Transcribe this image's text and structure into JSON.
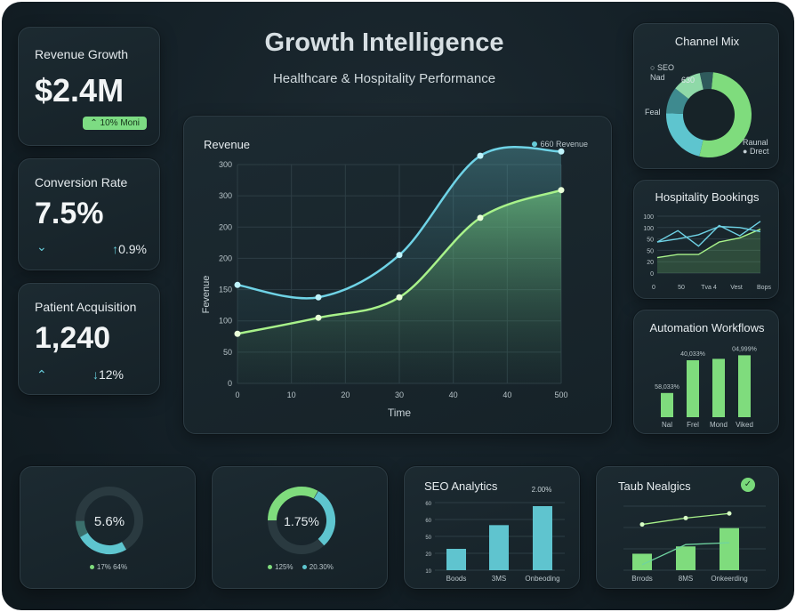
{
  "header": {
    "title": "Growth Intelligence",
    "subtitle": "Healthcare & Hospitality Performance"
  },
  "kpis": {
    "revenue": {
      "label": "Revenue Growth",
      "value": "$2.4M",
      "badge": "10% Moni"
    },
    "conversion": {
      "label": "Conversion Rate",
      "value": "7.5%",
      "change": "0.9%"
    },
    "patients": {
      "label": "Patient Acquisition",
      "value": "1,240",
      "change": "12%"
    }
  },
  "revenue_chart": {
    "title": "Revenue",
    "legend": "660 Revenue",
    "ylabel": "Fevenue",
    "xlabel": "Time",
    "yticks": [
      "300",
      "300",
      "200",
      "200",
      "150",
      "100",
      "50",
      "0"
    ],
    "xticks": [
      "0",
      "10",
      "20",
      "30",
      "40",
      "40",
      "500"
    ]
  },
  "channel_mix": {
    "title": "Channel Mix",
    "labels": [
      "SEO",
      "Nad",
      "Feal",
      "Raunal",
      "Drect"
    ],
    "center_label": "630"
  },
  "hospitality": {
    "title": "Hospitality Bookings",
    "yticks": [
      "100",
      "100",
      "50",
      "50",
      "20",
      "0"
    ],
    "xticks": [
      "0",
      "50",
      "Tva 4",
      "Vest",
      "Bops"
    ]
  },
  "automation": {
    "title": "Automation Workflows",
    "bar_labels": [
      "58,033%",
      "40,033%",
      "04,999%"
    ],
    "categories": [
      "Nal",
      "Frel",
      "Mond",
      "Viked"
    ]
  },
  "donut1": {
    "value": "5.6%",
    "legend": "17% 64%"
  },
  "donut2": {
    "value": "1.75%",
    "legend": [
      "125%",
      "20.30%"
    ]
  },
  "seo": {
    "title": "SEO Analytics",
    "top_label": "2.00%",
    "yticks": [
      "60",
      "60",
      "50",
      "20",
      "10"
    ],
    "categories": [
      "Boods",
      "3MS",
      "Onbeoding"
    ]
  },
  "taub": {
    "title": "Taub Nealgics",
    "categories": [
      "Brrods",
      "8MS",
      "Onkeerding"
    ]
  },
  "chart_data": [
    {
      "type": "line",
      "title": "Revenue",
      "xlabel": "Time",
      "ylabel": "Fevenue",
      "x": [
        0,
        15,
        30,
        45,
        60
      ],
      "series": [
        {
          "name": "660 Revenue",
          "values": [
            135,
            118,
            176,
            312,
            318
          ]
        },
        {
          "values": [
            68,
            90,
            118,
            227,
            265
          ]
        }
      ]
    },
    {
      "type": "pie",
      "title": "Channel Mix",
      "categories": [
        "Raunal",
        "Feal",
        "SEO",
        "Nad",
        "Drect"
      ],
      "values": [
        52,
        22,
        10,
        11,
        5
      ],
      "colors": [
        "#7fdc7d",
        "#5ec5cf",
        "#3e8a8f",
        "#8fd9a8",
        "#2f5a5c"
      ]
    },
    {
      "type": "line",
      "title": "Hospitality Bookings",
      "series": [
        {
          "values": [
            60,
            82,
            52,
            92,
            72,
            100
          ]
        },
        {
          "values": [
            30,
            36,
            36,
            60,
            68,
            85
          ]
        },
        {
          "values": [
            60,
            66,
            74,
            90,
            88,
            80
          ]
        }
      ]
    },
    {
      "type": "bar",
      "title": "Automation Workflows",
      "categories": [
        "Nal",
        "Frel",
        "Mond",
        "Viked"
      ],
      "values": [
        34,
        80,
        82,
        87
      ],
      "ylim": [
        0,
        100
      ]
    },
    {
      "type": "bar",
      "title": "SEO Analytics",
      "categories": [
        "Boods",
        "3MS",
        "Onbeoding"
      ],
      "values": [
        18,
        38,
        54
      ],
      "ylim": [
        0,
        60
      ]
    },
    {
      "type": "bar",
      "title": "Taub Nealgics",
      "categories": [
        "Brrods",
        "8MS",
        "Onkeerding"
      ],
      "values": [
        18,
        26,
        46
      ],
      "series": [
        {
          "values": [
            50,
            57,
            62
          ]
        },
        {
          "values": [
            6,
            28,
            30
          ]
        }
      ],
      "ylim": [
        0,
        70
      ]
    }
  ]
}
